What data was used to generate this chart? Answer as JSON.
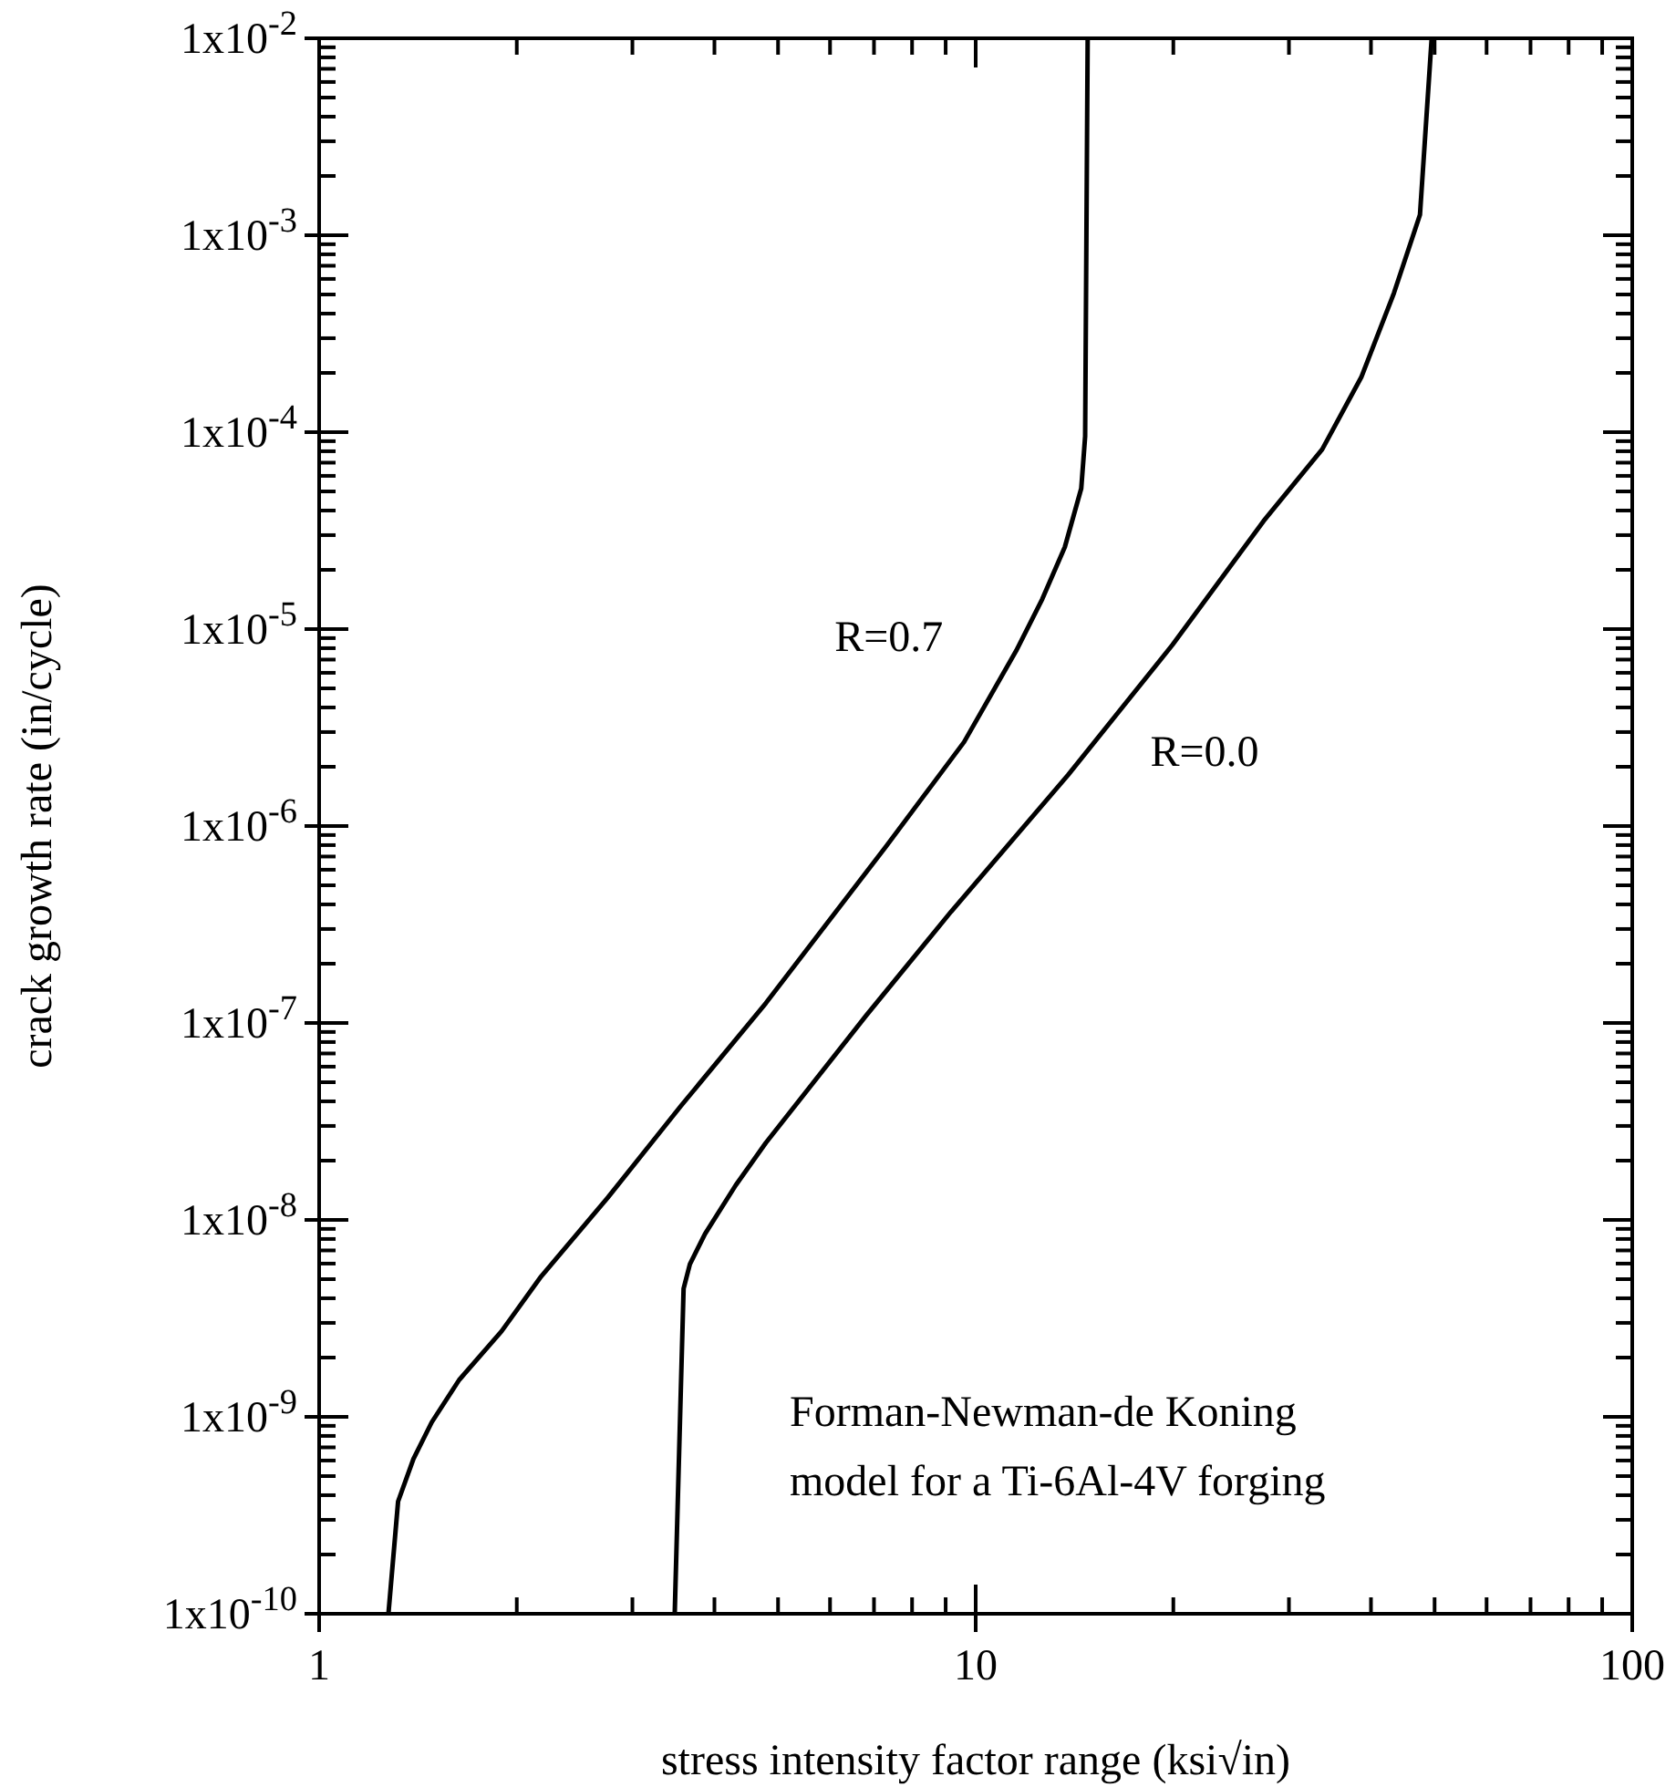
{
  "chart_data": {
    "type": "line",
    "xlabel": "stress intensity factor range (ksi√in)",
    "ylabel": "crack growth rate (in/cycle)",
    "log": "xy",
    "grid": false,
    "marker": "none",
    "line_style": "solid",
    "xlim": [
      1,
      100
    ],
    "xticks": [
      1,
      10,
      100
    ],
    "ylim": [
      1e-10,
      0.01
    ],
    "yticks": [
      {
        "value": 1e-10,
        "label": "1x10$^{-10}$"
      },
      {
        "value": 1e-09,
        "label": "1x10$^{-9}$"
      },
      {
        "value": 1e-08,
        "label": "1x10$^{-8}$"
      },
      {
        "value": 1e-07,
        "label": "1x10$^{-7}$"
      },
      {
        "value": 1e-06,
        "label": "1x10$^{-6}$"
      },
      {
        "value": 1e-05,
        "label": "1x10$^{-5}$"
      },
      {
        "value": 0.0001,
        "label": "1x10$^{-4}$"
      },
      {
        "value": 0.001,
        "label": "1x10$^{-3}$"
      },
      {
        "value": 0.01,
        "label": "1x10$^{-2}$"
      }
    ],
    "series": [
      {
        "name": "R=0.7",
        "color": "#000000",
        "x": [
          1.275,
          1.319,
          1.392,
          1.484,
          1.634,
          1.896,
          2.178,
          2.753,
          3.554,
          4.79,
          5.81,
          7.3,
          9.6,
          11.52,
          12.63,
          13.67,
          14.48,
          14.68,
          14.81
        ],
        "values": [
          1e-10,
          3.72e-10,
          6.12e-10,
          9.38e-10,
          1.54e-09,
          2.72e-09,
          5.16e-09,
          1.3e-08,
          3.78e-08,
          1.26e-07,
          2.92e-07,
          7.86e-07,
          2.67e-06,
          7.74e-06,
          1.42e-05,
          2.61e-05,
          5.18e-05,
          9.53e-05,
          0.01
        ]
      },
      {
        "name": "R=0.0",
        "color": "#000000",
        "x": [
          3.48,
          3.59,
          3.67,
          3.87,
          4.31,
          4.79,
          6.81,
          9.17,
          13.83,
          19.94,
          27.45,
          33.71,
          38.66,
          43.35,
          47.5,
          49.49
        ],
        "values": [
          1e-10,
          4.48e-09,
          5.96e-09,
          8.49e-09,
          1.5e-08,
          2.46e-08,
          1.09e-07,
          3.67e-07,
          1.82e-06,
          8.32e-06,
          3.54e-05,
          8.18e-05,
          0.00019,
          0.000508,
          0.00127,
          0.01
        ]
      }
    ],
    "annotations": [
      "Forman-Newman-de Koning\nmodel for a Ti-6Al-4V forging"
    ]
  }
}
